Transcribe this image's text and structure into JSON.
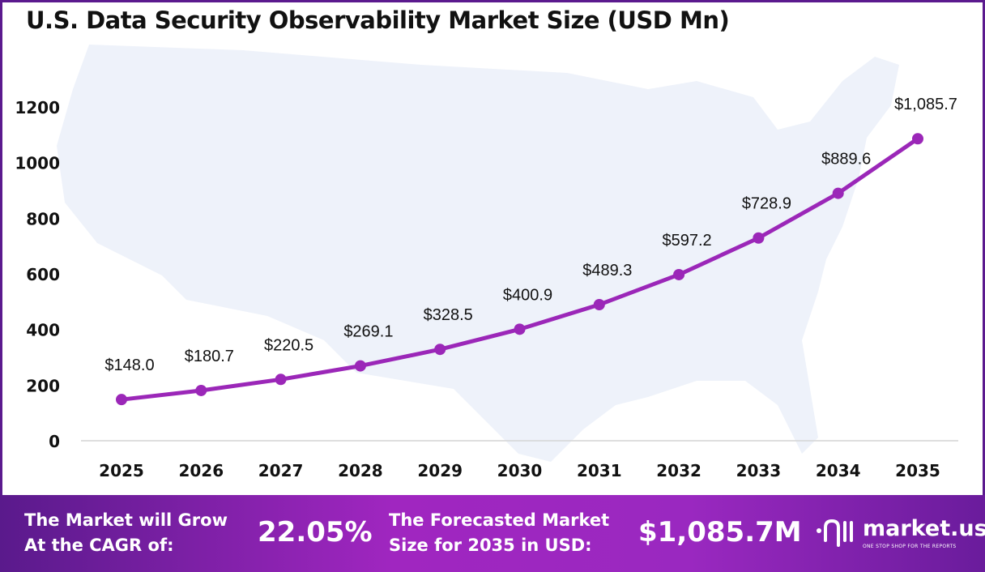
{
  "title": "U.S. Data Security Observability Market Size (USD Mn)",
  "chart_data": {
    "type": "line",
    "title": "U.S. Data Security Observability Market Size (USD Mn)",
    "categories": [
      "2025",
      "2026",
      "2027",
      "2028",
      "2029",
      "2030",
      "2031",
      "2032",
      "2033",
      "2034",
      "2035"
    ],
    "values": [
      148.0,
      180.7,
      220.5,
      269.1,
      328.5,
      400.9,
      489.3,
      597.2,
      728.9,
      889.6,
      1085.7
    ],
    "data_labels": [
      "$148.0",
      "$180.7",
      "$220.5",
      "$269.1",
      "$328.5",
      "$400.9",
      "$489.3",
      "$597.2",
      "$728.9",
      "$889.6",
      "$1,085.7"
    ],
    "yticks": [
      "0",
      "200",
      "400",
      "600",
      "800",
      "1000",
      "1200"
    ],
    "ylim": [
      0,
      1200
    ],
    "xlabel": "",
    "ylabel": "",
    "grid": false,
    "line_color": "#9b27b8",
    "background_image": "us-map-silhouette"
  },
  "footer": {
    "cagr_label_1": "The Market will Grow",
    "cagr_label_2": "At the CAGR of:",
    "cagr_value": "22.05%",
    "forecast_label_1": "The Forecasted Market",
    "forecast_label_2": "Size for 2035 in USD:",
    "forecast_value": "$1,085.7M",
    "logo_name": "market.us",
    "logo_tagline": "ONE STOP SHOP FOR THE REPORTS"
  }
}
